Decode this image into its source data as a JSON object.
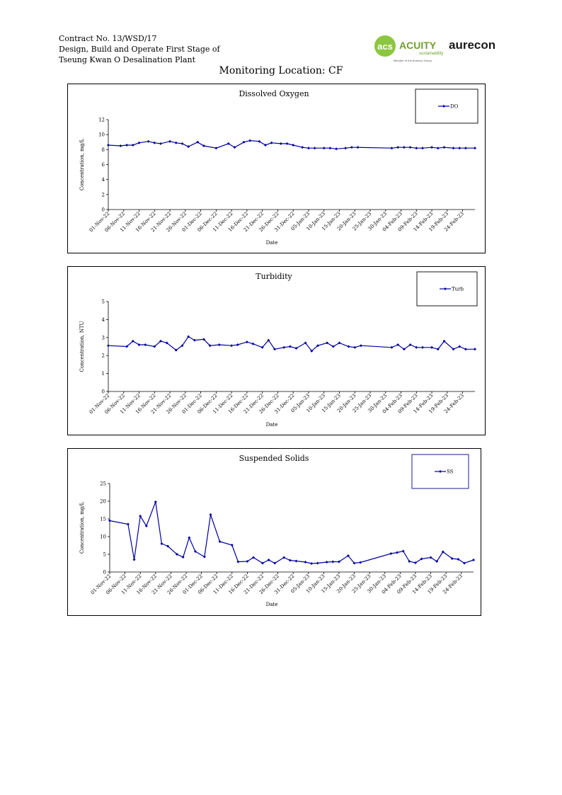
{
  "header": {
    "lines": [
      "Contract No. 13/WSD/17",
      "Design, Build and Operate First Stage of",
      "Tseung Kwan O Desalination Plant"
    ]
  },
  "logos": {
    "acuity_mark": "acs",
    "acuity_name": "ACUITY",
    "acuity_sub": "sustainability",
    "acuity_member": "Member of the Aurecon Group",
    "aurecon_name": "aurecon",
    "colors": {
      "acuity": "#8cc63f",
      "acuity_text": "#6f9d2f",
      "aurecon": "#1a1a1a"
    }
  },
  "page_title": "Monitoring Location: CF",
  "style": {
    "series_color": "#0000a0",
    "legend_border": "#00008b"
  },
  "chart_data": [
    {
      "type": "line",
      "title": "Dissolved Oxygen",
      "xlabel": "Date",
      "ylabel": "Concentration, mg/L",
      "ylim": [
        0,
        12
      ],
      "yticks": [
        0,
        2,
        4,
        6,
        8,
        10,
        12
      ],
      "xlim": [
        "2022-11-01",
        "2023-02-28"
      ],
      "xtick_labels": [
        "01-Nov-22",
        "06-Nov-22",
        "11-Nov-22",
        "16-Nov-22",
        "21-Nov-22",
        "26-Nov-22",
        "01-Dec-22",
        "06-Dec-22",
        "11-Dec-22",
        "16-Dec-22",
        "21-Dec-22",
        "26-Dec-22",
        "31-Dec-22",
        "05-Jan-23",
        "10-Jan-23",
        "15-Jan-23",
        "20-Jan-23",
        "25-Jan-23",
        "30-Jan-23",
        "04-Feb-23",
        "09-Feb-23",
        "14-Feb-23",
        "19-Feb-23",
        "24-Feb-23"
      ],
      "legend_position": "top-right",
      "series": [
        {
          "name": "DO",
          "x": [
            "2022-11-01",
            "2022-11-05",
            "2022-11-07",
            "2022-11-09",
            "2022-11-11",
            "2022-11-14",
            "2022-11-16",
            "2022-11-18",
            "2022-11-21",
            "2022-11-23",
            "2022-11-25",
            "2022-11-27",
            "2022-11-30",
            "2022-12-02",
            "2022-12-06",
            "2022-12-10",
            "2022-12-12",
            "2022-12-15",
            "2022-12-17",
            "2022-12-20",
            "2022-12-22",
            "2022-12-24",
            "2022-12-27",
            "2022-12-29",
            "2022-12-31",
            "2023-01-03",
            "2023-01-05",
            "2023-01-07",
            "2023-01-10",
            "2023-01-12",
            "2023-01-14",
            "2023-01-17",
            "2023-01-19",
            "2023-01-21",
            "2023-02-01",
            "2023-02-03",
            "2023-02-05",
            "2023-02-07",
            "2023-02-09",
            "2023-02-11",
            "2023-02-14",
            "2023-02-16",
            "2023-02-18",
            "2023-02-21",
            "2023-02-23",
            "2023-02-25",
            "2023-02-28"
          ],
          "values": [
            8.6,
            8.5,
            8.6,
            8.6,
            8.9,
            9.1,
            8.9,
            8.8,
            9.1,
            8.9,
            8.8,
            8.4,
            9.0,
            8.5,
            8.2,
            8.8,
            8.3,
            9.0,
            9.2,
            9.1,
            8.6,
            8.9,
            8.8,
            8.8,
            8.6,
            8.3,
            8.2,
            8.2,
            8.2,
            8.2,
            8.1,
            8.2,
            8.3,
            8.3,
            8.2,
            8.3,
            8.3,
            8.3,
            8.2,
            8.2,
            8.3,
            8.2,
            8.3,
            8.2,
            8.2,
            8.2,
            8.2
          ]
        }
      ]
    },
    {
      "type": "line",
      "title": "Turbidity",
      "xlabel": "Date",
      "ylabel": "Concentration, NTU",
      "ylim": [
        0,
        5
      ],
      "yticks": [
        0,
        1,
        2,
        3,
        4,
        5
      ],
      "xlim": [
        "2022-11-01",
        "2023-02-28"
      ],
      "xtick_labels": [
        "01-Nov-22",
        "06-Nov-22",
        "11-Nov-22",
        "16-Nov-22",
        "21-Nov-22",
        "26-Nov-22",
        "01-Dec-22",
        "06-Dec-22",
        "11-Dec-22",
        "16-Dec-22",
        "21-Dec-22",
        "26-Dec-22",
        "31-Dec-22",
        "05-Jan-23",
        "10-Jan-23",
        "15-Jan-23",
        "20-Jan-23",
        "25-Jan-23",
        "30-Jan-23",
        "04-Feb-23",
        "09-Feb-23",
        "14-Feb-23",
        "19-Feb-23",
        "24-Feb-23"
      ],
      "legend_position": "top-right",
      "series": [
        {
          "name": "Turb",
          "x": [
            "2022-11-01",
            "2022-11-07",
            "2022-11-09",
            "2022-11-11",
            "2022-11-13",
            "2022-11-16",
            "2022-11-18",
            "2022-11-20",
            "2022-11-23",
            "2022-11-25",
            "2022-11-27",
            "2022-11-29",
            "2022-12-02",
            "2022-12-04",
            "2022-12-07",
            "2022-12-11",
            "2022-12-13",
            "2022-12-16",
            "2022-12-18",
            "2022-12-21",
            "2022-12-23",
            "2022-12-25",
            "2022-12-28",
            "2022-12-30",
            "2023-01-01",
            "2023-01-04",
            "2023-01-06",
            "2023-01-08",
            "2023-01-11",
            "2023-01-13",
            "2023-01-15",
            "2023-01-18",
            "2023-01-20",
            "2023-01-22",
            "2023-02-01",
            "2023-02-03",
            "2023-02-05",
            "2023-02-07",
            "2023-02-09",
            "2023-02-11",
            "2023-02-14",
            "2023-02-16",
            "2023-02-18",
            "2023-02-21",
            "2023-02-23",
            "2023-02-25",
            "2023-02-28"
          ],
          "values": [
            2.55,
            2.5,
            2.8,
            2.6,
            2.6,
            2.5,
            2.8,
            2.7,
            2.3,
            2.55,
            3.05,
            2.85,
            2.9,
            2.55,
            2.6,
            2.55,
            2.6,
            2.75,
            2.65,
            2.45,
            2.85,
            2.35,
            2.45,
            2.5,
            2.4,
            2.7,
            2.25,
            2.55,
            2.7,
            2.5,
            2.7,
            2.5,
            2.45,
            2.55,
            2.45,
            2.6,
            2.35,
            2.6,
            2.45,
            2.45,
            2.45,
            2.35,
            2.8,
            2.35,
            2.5,
            2.35,
            2.35
          ]
        }
      ]
    },
    {
      "type": "line",
      "title": "Suspended Solids",
      "xlabel": "Date",
      "ylabel": "Concentration, mg/L",
      "ylim": [
        0,
        25
      ],
      "yticks": [
        0,
        5,
        10,
        15,
        20,
        25
      ],
      "xlim": [
        "2022-11-01",
        "2023-02-28"
      ],
      "xtick_labels": [
        "01-Nov-22",
        "06-Nov-22",
        "11-Nov-22",
        "16-Nov-22",
        "21-Nov-22",
        "26-Nov-22",
        "01-Dec-22",
        "06-Dec-22",
        "11-Dec-22",
        "16-Dec-22",
        "21-Dec-22",
        "26-Dec-22",
        "31-Dec-22",
        "05-Jan-23",
        "10-Jan-23",
        "15-Jan-23",
        "20-Jan-23",
        "25-Jan-23",
        "30-Jan-23",
        "04-Feb-23",
        "09-Feb-23",
        "14-Feb-23",
        "19-Feb-23",
        "24-Feb-23"
      ],
      "legend_position": "top-right",
      "series": [
        {
          "name": "SS",
          "x": [
            "2022-11-01",
            "2022-11-07",
            "2022-11-09",
            "2022-11-11",
            "2022-11-13",
            "2022-11-16",
            "2022-11-18",
            "2022-11-20",
            "2022-11-23",
            "2022-11-25",
            "2022-11-27",
            "2022-11-29",
            "2022-12-02",
            "2022-12-04",
            "2022-12-07",
            "2022-12-11",
            "2022-12-13",
            "2022-12-16",
            "2022-12-18",
            "2022-12-21",
            "2022-12-23",
            "2022-12-25",
            "2022-12-28",
            "2022-12-30",
            "2023-01-01",
            "2023-01-04",
            "2023-01-06",
            "2023-01-08",
            "2023-01-11",
            "2023-01-13",
            "2023-01-15",
            "2023-01-18",
            "2023-01-20",
            "2023-01-22",
            "2023-02-01",
            "2023-02-03",
            "2023-02-05",
            "2023-02-07",
            "2023-02-09",
            "2023-02-11",
            "2023-02-14",
            "2023-02-16",
            "2023-02-18",
            "2023-02-21",
            "2023-02-23",
            "2023-02-25",
            "2023-02-28"
          ],
          "values": [
            14.5,
            13.5,
            3.5,
            15.8,
            13.0,
            19.8,
            8.0,
            7.3,
            5.0,
            4.2,
            9.7,
            5.8,
            4.3,
            16.2,
            8.6,
            7.6,
            2.9,
            3.0,
            4.1,
            2.5,
            3.4,
            2.5,
            4.1,
            3.3,
            3.1,
            2.8,
            2.4,
            2.5,
            2.8,
            2.9,
            2.9,
            4.6,
            2.5,
            2.7,
            5.2,
            5.5,
            5.9,
            3.0,
            2.6,
            3.7,
            4.1,
            3.0,
            5.7,
            3.8,
            3.6,
            2.5,
            3.4
          ]
        }
      ]
    }
  ]
}
